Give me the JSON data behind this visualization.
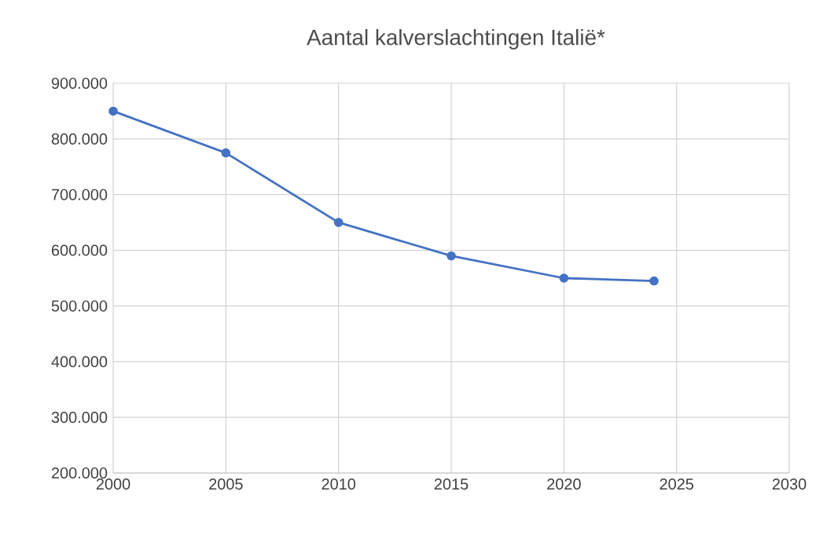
{
  "chart_data": {
    "type": "line",
    "title": "Aantal kalverslachtingen Italië*",
    "x": [
      2000,
      2005,
      2010,
      2015,
      2020,
      2024
    ],
    "values": [
      850000,
      775000,
      650000,
      590000,
      550000,
      545000
    ],
    "color": "#4472c4",
    "marker": "circle",
    "grid": true,
    "xlim": [
      2000,
      2030
    ],
    "xticks": [
      2000,
      2005,
      2010,
      2015,
      2020,
      2025,
      2030
    ],
    "ylim": [
      200000,
      900000
    ],
    "yticks": [
      {
        "value": 200000,
        "label": "200.000"
      },
      {
        "value": 300000,
        "label": "300.000"
      },
      {
        "value": 400000,
        "label": "400.000"
      },
      {
        "value": 500000,
        "label": "500.000"
      },
      {
        "value": 600000,
        "label": "600.000"
      },
      {
        "value": 700000,
        "label": "700.000"
      },
      {
        "value": 800000,
        "label": "800.000"
      },
      {
        "value": 900000,
        "label": "900.000"
      }
    ]
  }
}
